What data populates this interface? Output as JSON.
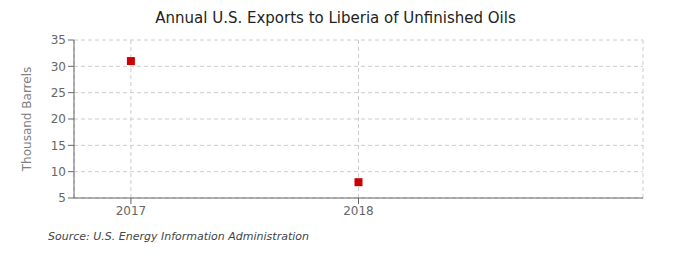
{
  "chart_data": {
    "type": "scatter",
    "title": "Annual U.S. Exports to Liberia of Unfinished Oils",
    "ylabel": "Thousand Barrels",
    "source": "Source: U.S. Energy Information Administration",
    "x": [
      2017,
      2018
    ],
    "values": [
      31,
      8
    ],
    "color": "#cc0000",
    "marker": "square",
    "xlim": [
      2016.75,
      2019.25
    ],
    "xticks": [
      2017,
      2018
    ],
    "ylim": [
      5,
      35
    ],
    "yticks": [
      5,
      10,
      15,
      20,
      25,
      30,
      35
    ],
    "grid": true
  }
}
